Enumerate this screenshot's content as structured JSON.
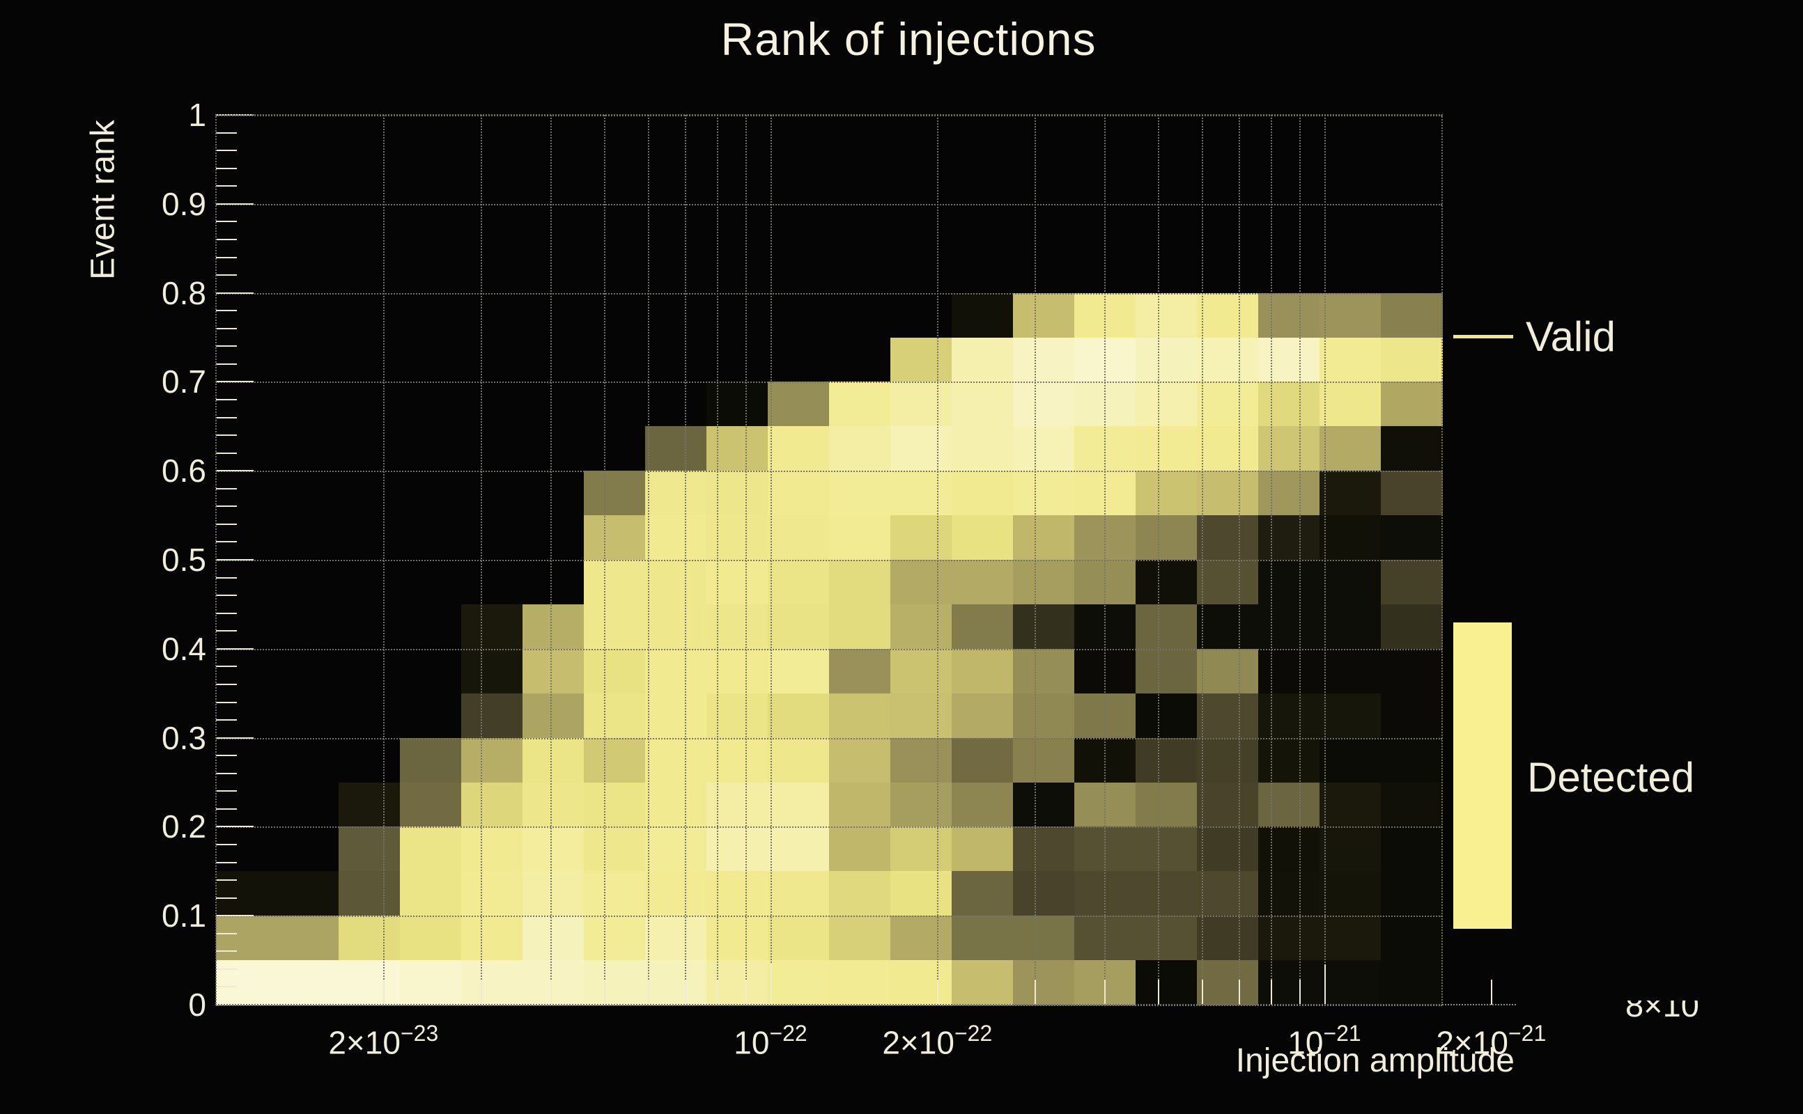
{
  "title": "Rank of injections",
  "legend": {
    "valid": "Valid",
    "detected": "Detected"
  },
  "annotations": {
    "clipped_label": "8×10"
  },
  "colors": {
    "background": "#050505",
    "text": "#f2edda",
    "title_text": "#f7f2e0",
    "grid": "#74746c",
    "tick": "#efead6",
    "legend_line": "#f0e88a",
    "legend_box": "#f8f091",
    "palette_stops": [
      [
        0.0,
        "#070706"
      ],
      [
        0.08,
        "#151409"
      ],
      [
        0.25,
        "#3f3b25"
      ],
      [
        0.4,
        "#6b6540"
      ],
      [
        0.55,
        "#968e57"
      ],
      [
        0.7,
        "#c6bd6e"
      ],
      [
        0.82,
        "#e9e282"
      ],
      [
        0.9,
        "#f3ec96"
      ],
      [
        0.96,
        "#f7f3c3"
      ],
      [
        1.0,
        "#fdfae8"
      ]
    ]
  },
  "chart_data": {
    "type": "heatmap",
    "title": "Rank of injections",
    "xlabel": "Injection amplitude",
    "ylabel": "Event rank",
    "x_scale": "log",
    "x_range": [
      1e-23,
      1.63e-21
    ],
    "y_range": [
      0,
      1
    ],
    "grid_on": true,
    "legend_position": "right-outside",
    "value_note": "normalized color intensity, 0 = black (empty) to 1 = cream (maximum counts)",
    "n_cols": 20,
    "n_rows": 16,
    "rank_row_height": 0.05,
    "rank_top": 0.8,
    "grid_rank_ranges": [
      "0.75-0.80",
      "0.70-0.75",
      "0.65-0.70",
      "0.60-0.65",
      "0.55-0.60",
      "0.50-0.55",
      "0.45-0.50",
      "0.40-0.45",
      "0.35-0.40",
      "0.30-0.35",
      "0.25-0.30",
      "0.20-0.25",
      "0.15-0.20",
      "0.10-0.15",
      "0.05-0.10",
      "0.00-0.05"
    ],
    "grid_values": [
      [
        0,
        0,
        0,
        0,
        0,
        0,
        0,
        0,
        0,
        0,
        0,
        0,
        0.06,
        0.7,
        0.88,
        0.92,
        0.88,
        0.56,
        0.57,
        0.5
      ],
      [
        0,
        0,
        0,
        0,
        0,
        0,
        0,
        0,
        0,
        0,
        0,
        0.76,
        0.93,
        0.96,
        0.97,
        0.95,
        0.94,
        0.96,
        0.89,
        0.85
      ],
      [
        0,
        0,
        0,
        0,
        0,
        0,
        0,
        0,
        0.03,
        0.55,
        0.9,
        0.92,
        0.93,
        0.96,
        0.95,
        0.93,
        0.9,
        0.79,
        0.86,
        0.63
      ],
      [
        0,
        0,
        0,
        0,
        0,
        0,
        0,
        0.4,
        0.72,
        0.88,
        0.92,
        0.94,
        0.93,
        0.94,
        0.9,
        0.89,
        0.88,
        0.73,
        0.64,
        0.05
      ],
      [
        0,
        0,
        0,
        0,
        0,
        0,
        0.48,
        0.87,
        0.85,
        0.88,
        0.9,
        0.9,
        0.88,
        0.9,
        0.89,
        0.72,
        0.7,
        0.58,
        0.1,
        0.28
      ],
      [
        0,
        0,
        0,
        0,
        0,
        0,
        0.7,
        0.88,
        0.86,
        0.87,
        0.89,
        0.78,
        0.82,
        0.68,
        0.57,
        0.52,
        0.3,
        0.12,
        0.06,
        0.04
      ],
      [
        0,
        0,
        0,
        0,
        0,
        0,
        0.86,
        0.86,
        0.88,
        0.84,
        0.8,
        0.64,
        0.64,
        0.6,
        0.55,
        0.05,
        0.33,
        0.04,
        0.04,
        0.27
      ],
      [
        0,
        0,
        0,
        0,
        0.1,
        0.65,
        0.86,
        0.86,
        0.85,
        0.83,
        0.8,
        0.66,
        0.48,
        0.2,
        0.04,
        0.4,
        0.04,
        0.04,
        0.04,
        0.2
      ],
      [
        0,
        0,
        0,
        0,
        0.09,
        0.7,
        0.82,
        0.88,
        0.88,
        0.9,
        0.56,
        0.72,
        0.68,
        0.55,
        0.02,
        0.4,
        0.53,
        0.02,
        0.02,
        0.02
      ],
      [
        0,
        0,
        0,
        0,
        0.26,
        0.62,
        0.84,
        0.88,
        0.84,
        0.8,
        0.72,
        0.71,
        0.64,
        0.53,
        0.47,
        0.03,
        0.3,
        0.09,
        0.09,
        0.02
      ],
      [
        0,
        0,
        0,
        0.4,
        0.65,
        0.84,
        0.74,
        0.88,
        0.88,
        0.86,
        0.7,
        0.56,
        0.42,
        0.5,
        0.06,
        0.25,
        0.27,
        0.08,
        0.03,
        0.03
      ],
      [
        0,
        0,
        0.1,
        0.42,
        0.78,
        0.85,
        0.84,
        0.88,
        0.92,
        0.92,
        0.68,
        0.6,
        0.52,
        0.04,
        0.55,
        0.48,
        0.28,
        0.4,
        0.1,
        0.05
      ],
      [
        0,
        0,
        0.36,
        0.84,
        0.88,
        0.91,
        0.86,
        0.9,
        0.93,
        0.93,
        0.68,
        0.75,
        0.68,
        0.3,
        0.33,
        0.33,
        0.25,
        0.06,
        0.09,
        0.03
      ],
      [
        0.07,
        0.07,
        0.35,
        0.84,
        0.89,
        0.92,
        0.9,
        0.89,
        0.88,
        0.87,
        0.79,
        0.82,
        0.4,
        0.28,
        0.3,
        0.3,
        0.3,
        0.07,
        0.08,
        0.03
      ],
      [
        0.62,
        0.62,
        0.8,
        0.82,
        0.88,
        0.95,
        0.9,
        0.93,
        0.88,
        0.84,
        0.76,
        0.64,
        0.45,
        0.45,
        0.33,
        0.33,
        0.25,
        0.1,
        0.1,
        0.03
      ],
      [
        0.98,
        0.98,
        0.98,
        0.97,
        0.96,
        0.96,
        0.95,
        0.95,
        0.92,
        0.9,
        0.89,
        0.88,
        0.7,
        0.57,
        0.6,
        0.03,
        0.42,
        0.04,
        0.04,
        0.03
      ]
    ],
    "x_ticks": [
      {
        "value": 2e-23,
        "base": "2×10",
        "sup": "−23",
        "major": false
      },
      {
        "value": 3e-23,
        "major": false
      },
      {
        "value": 4e-23,
        "major": false
      },
      {
        "value": 5e-23,
        "major": false
      },
      {
        "value": 6e-23,
        "major": false
      },
      {
        "value": 7e-23,
        "major": false
      },
      {
        "value": 8e-23,
        "major": false
      },
      {
        "value": 9e-23,
        "major": false
      },
      {
        "value": 1e-22,
        "base": "10",
        "sup": "−22",
        "major": true
      },
      {
        "value": 2e-22,
        "base": "2×10",
        "sup": "−22",
        "major": false
      },
      {
        "value": 3e-22,
        "major": false
      },
      {
        "value": 4e-22,
        "major": false
      },
      {
        "value": 5e-22,
        "major": false
      },
      {
        "value": 6e-22,
        "major": false
      },
      {
        "value": 7e-22,
        "major": false
      },
      {
        "value": 8e-22,
        "major": false
      },
      {
        "value": 9e-22,
        "major": false
      },
      {
        "value": 1e-21,
        "base": "10",
        "sup": "−21",
        "major": true
      },
      {
        "value": 2e-21,
        "base": "2×10",
        "sup": "−21",
        "major": false
      }
    ],
    "y_ticks": {
      "major_step": 0.1,
      "minor_step": 0.02,
      "labels": [
        "0",
        "0.1",
        "0.2",
        "0.3",
        "0.4",
        "0.5",
        "0.6",
        "0.7",
        "0.8",
        "0.9",
        "1"
      ]
    }
  }
}
